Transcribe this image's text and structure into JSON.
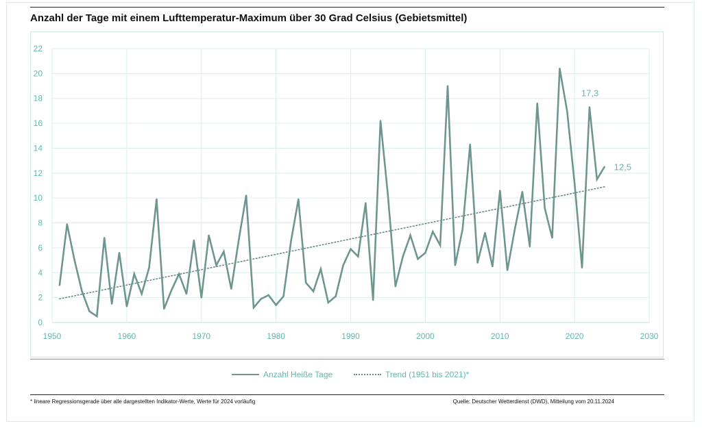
{
  "title": "Anzahl der Tage mit einem Lufttemperatur-Maximum über 30 Grad Celsius (Gebietsmittel)",
  "footnote": "* lineare Regressionsgerade über alle dargestellten Indikator-Werte, Werte für 2024 vorläufig",
  "source": "Quelle: Deutscher Wetterdienst (DWD), Mitteilung vom 20.11.2024",
  "colors": {
    "series": "#6e968f",
    "trend": "#5e8a83",
    "axis_text": "#5fb8ad",
    "grid": "#d9efec"
  },
  "chart_data": {
    "type": "line",
    "title": "Anzahl der Tage mit einem Lufttemperatur-Maximum über 30 Grad Celsius (Gebietsmittel)",
    "xlim": [
      1950,
      2030
    ],
    "ylim": [
      0,
      22
    ],
    "xticks": [
      1950,
      1960,
      1970,
      1980,
      1990,
      2000,
      2010,
      2020,
      2030
    ],
    "yticks": [
      0,
      2,
      4,
      6,
      8,
      10,
      12,
      14,
      16,
      18,
      20,
      22
    ],
    "grid": true,
    "legend_position": "bottom",
    "series": [
      {
        "name": "Anzahl Heiße Tage",
        "style": "solid",
        "x": [
          1951,
          1952,
          1953,
          1954,
          1955,
          1956,
          1957,
          1958,
          1959,
          1960,
          1961,
          1962,
          1963,
          1964,
          1965,
          1966,
          1967,
          1968,
          1969,
          1970,
          1971,
          1972,
          1973,
          1974,
          1975,
          1976,
          1977,
          1978,
          1979,
          1980,
          1981,
          1982,
          1983,
          1984,
          1985,
          1986,
          1987,
          1988,
          1989,
          1990,
          1991,
          1992,
          1993,
          1994,
          1995,
          1996,
          1997,
          1998,
          1999,
          2000,
          2001,
          2002,
          2003,
          2004,
          2005,
          2006,
          2007,
          2008,
          2009,
          2010,
          2011,
          2012,
          2013,
          2014,
          2015,
          2016,
          2017,
          2018,
          2019,
          2020,
          2021,
          2022,
          2023,
          2024
        ],
        "values": [
          3.0,
          7.9,
          5.0,
          2.5,
          0.9,
          0.5,
          6.8,
          1.5,
          5.6,
          1.3,
          3.9,
          2.3,
          4.4,
          9.9,
          1.1,
          2.6,
          3.9,
          2.3,
          6.6,
          2.0,
          7.0,
          4.6,
          5.7,
          2.7,
          6.6,
          10.2,
          1.2,
          1.9,
          2.2,
          1.4,
          2.1,
          6.5,
          9.9,
          3.2,
          2.5,
          4.3,
          1.6,
          2.1,
          4.6,
          5.9,
          5.3,
          9.6,
          1.8,
          16.2,
          10.2,
          2.9,
          5.3,
          7.0,
          5.1,
          5.6,
          7.3,
          6.2,
          19.0,
          4.6,
          7.5,
          14.3,
          4.8,
          7.2,
          4.5,
          10.6,
          4.2,
          7.5,
          10.5,
          6.1,
          17.6,
          9.2,
          6.8,
          20.4,
          17.0,
          11.2,
          4.4,
          17.3,
          11.5,
          12.5
        ]
      },
      {
        "name": "Trend (1951 bis 2021)*",
        "style": "dotted",
        "x": [
          1951,
          2024
        ],
        "values": [
          1.9,
          10.9
        ]
      }
    ],
    "annotations": [
      {
        "x": 2022,
        "y": 17.3,
        "text": "17,3"
      },
      {
        "x": 2024,
        "y": 12.5,
        "text": "12,5"
      }
    ]
  }
}
